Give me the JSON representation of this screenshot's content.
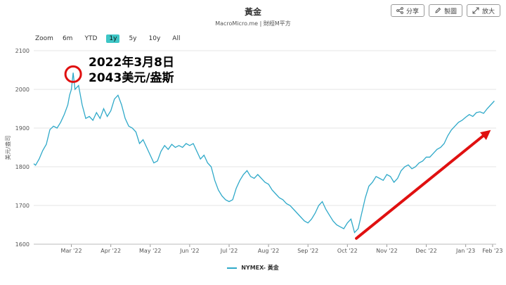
{
  "header": {
    "title": "黃金",
    "subtitle": "MacroMicro.me | 財經M平方"
  },
  "toolbar": {
    "buttons": [
      {
        "label": "分享",
        "icon": "share-icon"
      },
      {
        "label": "製圖",
        "icon": "pencil-icon"
      },
      {
        "label": "放大",
        "icon": "expand-icon"
      }
    ]
  },
  "zoom": {
    "label": "Zoom",
    "options": [
      "6m",
      "YTD",
      "1y",
      "5y",
      "10y",
      "All"
    ],
    "selected": "1y"
  },
  "annotation": {
    "line1": "2022年3月8日",
    "line2": "2043美元/盎斯"
  },
  "colors": {
    "series": "#2fa9c9",
    "highlight": "#e01010",
    "zoom_active": "#3ec6c6"
  },
  "chart_data": {
    "type": "line",
    "ylabel": "美元/盎司",
    "ylim": [
      1600,
      2100
    ],
    "yticks": [
      1600,
      1700,
      1800,
      1900,
      2000,
      2100
    ],
    "xticks": [
      "Mar '22",
      "Apr '22",
      "May '22",
      "Jun '22",
      "Jul '22",
      "Aug '22",
      "Sep '22",
      "Oct '22",
      "Nov '22",
      "Dec '22",
      "Jan '23",
      "Feb '23"
    ],
    "grid": true,
    "legend_position": "bottom-center",
    "series": [
      {
        "name": "NYMEX- 黃金",
        "points": [
          [
            0,
            1808
          ],
          [
            1,
            1804
          ],
          [
            3,
            1820
          ],
          [
            5,
            1842
          ],
          [
            7,
            1858
          ],
          [
            9,
            1896
          ],
          [
            11,
            1905
          ],
          [
            13,
            1900
          ],
          [
            15,
            1915
          ],
          [
            17,
            1935
          ],
          [
            19,
            1960
          ],
          [
            20,
            1985
          ],
          [
            21,
            2000
          ],
          [
            22,
            2043
          ],
          [
            23,
            2000
          ],
          [
            25,
            2010
          ],
          [
            27,
            1960
          ],
          [
            29,
            1925
          ],
          [
            31,
            1930
          ],
          [
            33,
            1920
          ],
          [
            35,
            1940
          ],
          [
            37,
            1925
          ],
          [
            39,
            1950
          ],
          [
            41,
            1930
          ],
          [
            43,
            1945
          ],
          [
            45,
            1975
          ],
          [
            47,
            1985
          ],
          [
            49,
            1960
          ],
          [
            51,
            1925
          ],
          [
            53,
            1905
          ],
          [
            55,
            1900
          ],
          [
            57,
            1890
          ],
          [
            59,
            1860
          ],
          [
            61,
            1870
          ],
          [
            63,
            1850
          ],
          [
            65,
            1830
          ],
          [
            67,
            1810
          ],
          [
            69,
            1815
          ],
          [
            71,
            1840
          ],
          [
            73,
            1855
          ],
          [
            75,
            1845
          ],
          [
            77,
            1858
          ],
          [
            79,
            1850
          ],
          [
            81,
            1855
          ],
          [
            83,
            1850
          ],
          [
            85,
            1860
          ],
          [
            87,
            1855
          ],
          [
            89,
            1860
          ],
          [
            91,
            1840
          ],
          [
            93,
            1820
          ],
          [
            95,
            1830
          ],
          [
            97,
            1810
          ],
          [
            99,
            1800
          ],
          [
            101,
            1765
          ],
          [
            103,
            1740
          ],
          [
            105,
            1725
          ],
          [
            107,
            1715
          ],
          [
            109,
            1710
          ],
          [
            111,
            1715
          ],
          [
            113,
            1745
          ],
          [
            115,
            1765
          ],
          [
            117,
            1780
          ],
          [
            119,
            1790
          ],
          [
            121,
            1775
          ],
          [
            123,
            1770
          ],
          [
            125,
            1780
          ],
          [
            127,
            1770
          ],
          [
            129,
            1760
          ],
          [
            131,
            1755
          ],
          [
            133,
            1740
          ],
          [
            135,
            1730
          ],
          [
            137,
            1720
          ],
          [
            139,
            1715
          ],
          [
            141,
            1705
          ],
          [
            143,
            1700
          ],
          [
            145,
            1690
          ],
          [
            147,
            1680
          ],
          [
            149,
            1670
          ],
          [
            151,
            1660
          ],
          [
            153,
            1655
          ],
          [
            155,
            1665
          ],
          [
            157,
            1680
          ],
          [
            159,
            1700
          ],
          [
            161,
            1710
          ],
          [
            163,
            1690
          ],
          [
            165,
            1675
          ],
          [
            167,
            1660
          ],
          [
            169,
            1650
          ],
          [
            171,
            1645
          ],
          [
            173,
            1640
          ],
          [
            175,
            1655
          ],
          [
            177,
            1665
          ],
          [
            179,
            1630
          ],
          [
            181,
            1640
          ],
          [
            183,
            1680
          ],
          [
            185,
            1720
          ],
          [
            187,
            1750
          ],
          [
            189,
            1760
          ],
          [
            191,
            1775
          ],
          [
            193,
            1770
          ],
          [
            195,
            1765
          ],
          [
            197,
            1780
          ],
          [
            199,
            1775
          ],
          [
            201,
            1760
          ],
          [
            203,
            1770
          ],
          [
            205,
            1790
          ],
          [
            207,
            1800
          ],
          [
            209,
            1805
          ],
          [
            211,
            1795
          ],
          [
            213,
            1800
          ],
          [
            215,
            1810
          ],
          [
            217,
            1815
          ],
          [
            219,
            1825
          ],
          [
            221,
            1825
          ],
          [
            223,
            1835
          ],
          [
            225,
            1845
          ],
          [
            227,
            1850
          ],
          [
            229,
            1860
          ],
          [
            231,
            1880
          ],
          [
            233,
            1895
          ],
          [
            235,
            1905
          ],
          [
            237,
            1915
          ],
          [
            239,
            1920
          ],
          [
            241,
            1928
          ],
          [
            243,
            1935
          ],
          [
            245,
            1930
          ],
          [
            247,
            1940
          ],
          [
            249,
            1942
          ],
          [
            251,
            1938
          ],
          [
            253,
            1950
          ],
          [
            255,
            1960
          ],
          [
            257,
            1970
          ]
        ]
      }
    ]
  }
}
